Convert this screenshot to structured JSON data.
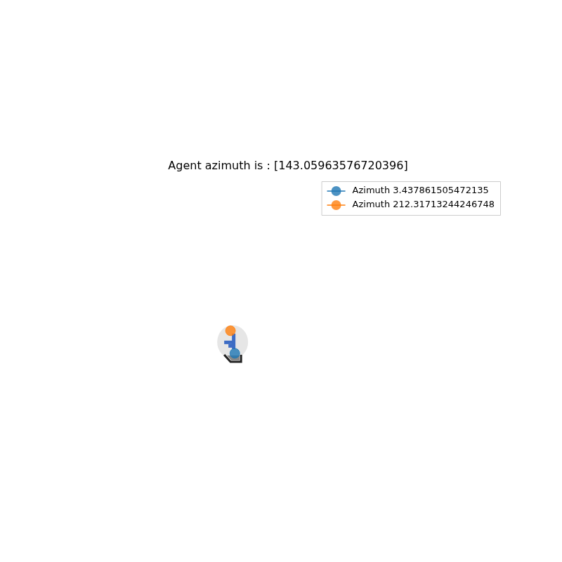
{
  "chart_data": {
    "type": "scatter",
    "title": "Agent azimuth is : [143.05963576720396]",
    "series": [
      {
        "name": "Azimuth 3.437861505472135",
        "color": "#1f77b4",
        "marker": "circle",
        "x": [
          37.7
        ],
        "values": [
          47.3
        ]
      },
      {
        "name": "Azimuth 212.31713244246748",
        "color": "#ff7f0e",
        "marker": "circle",
        "x": [
          36.7
        ],
        "values": [
          54
        ]
      }
    ],
    "xlim": [
      0,
      100
    ],
    "ylim": [
      0,
      100
    ],
    "tick_labels": false,
    "grid": false,
    "legend": "upper right"
  }
}
